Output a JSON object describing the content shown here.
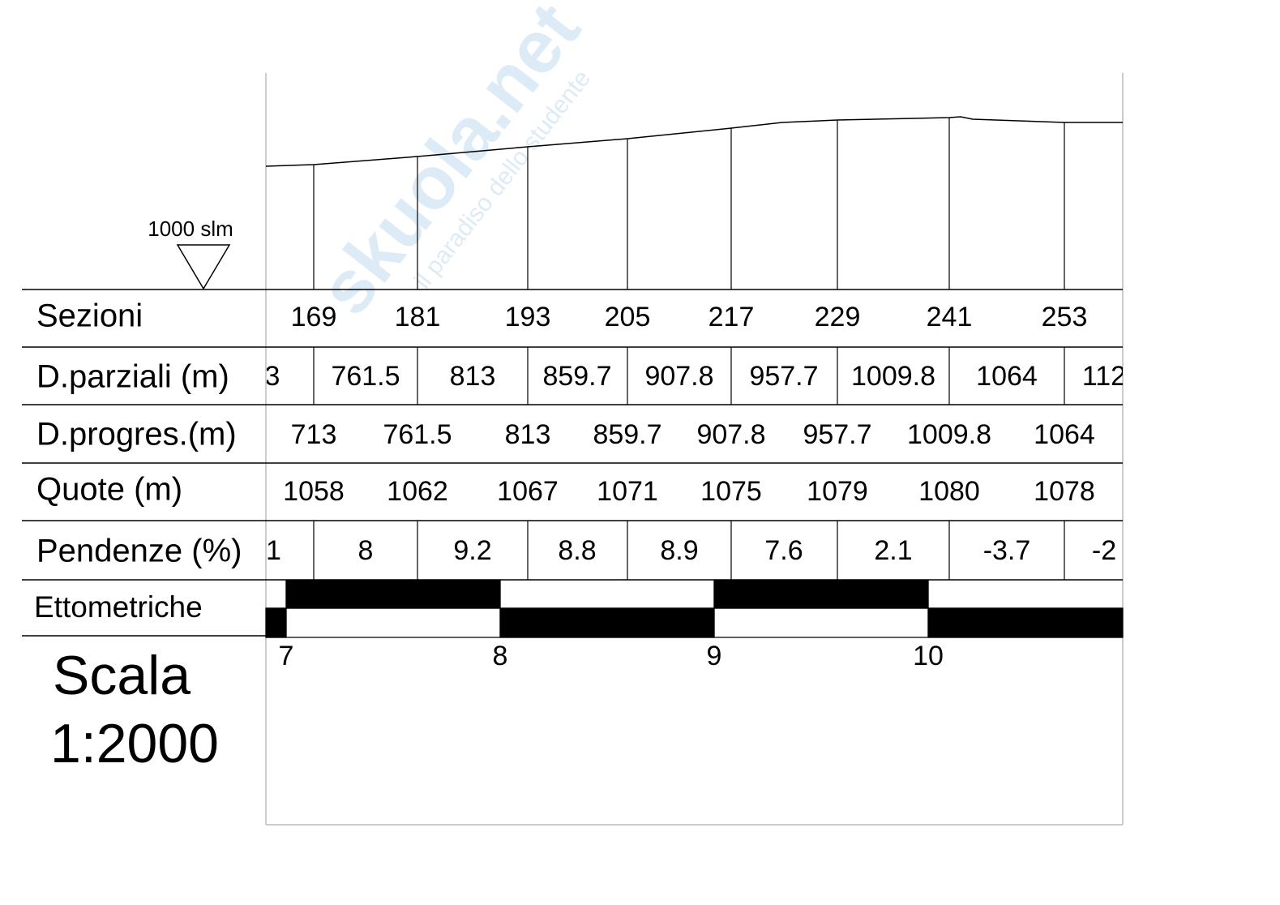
{
  "watermark": {
    "brand": "skuola.net",
    "tagline": "il paradiso dello studente"
  },
  "datum": "1000 slm",
  "rows": [
    {
      "label": "Sezioni",
      "cells": [
        "169",
        "181",
        "193",
        "205",
        "217",
        "229",
        "241",
        "253"
      ]
    },
    {
      "label": "D.parziali (m)",
      "cells": [
        "3",
        "761.5",
        "813",
        "859.7",
        "907.8",
        "957.7",
        "1009.8",
        "1064",
        "112"
      ]
    },
    {
      "label": "D.progres.(m)",
      "cells": [
        "713",
        "761.5",
        "813",
        "859.7",
        "907.8",
        "957.7",
        "1009.8",
        "1064"
      ]
    },
    {
      "label": "Quote (m)",
      "cells": [
        "1058",
        "1062",
        "1067",
        "1071",
        "1075",
        "1079",
        "1080",
        "1078"
      ]
    },
    {
      "label": "Pendenze (%)",
      "cells": [
        "1",
        "8",
        "9.2",
        "8.8",
        "8.9",
        "7.6",
        "2.1",
        "-3.7",
        "-2"
      ]
    }
  ],
  "ettometriche": {
    "label": "Ettometriche",
    "ticks": [
      "7",
      "8",
      "9",
      "10"
    ]
  },
  "scale": {
    "title": "Scala",
    "value": "1:2000"
  }
}
